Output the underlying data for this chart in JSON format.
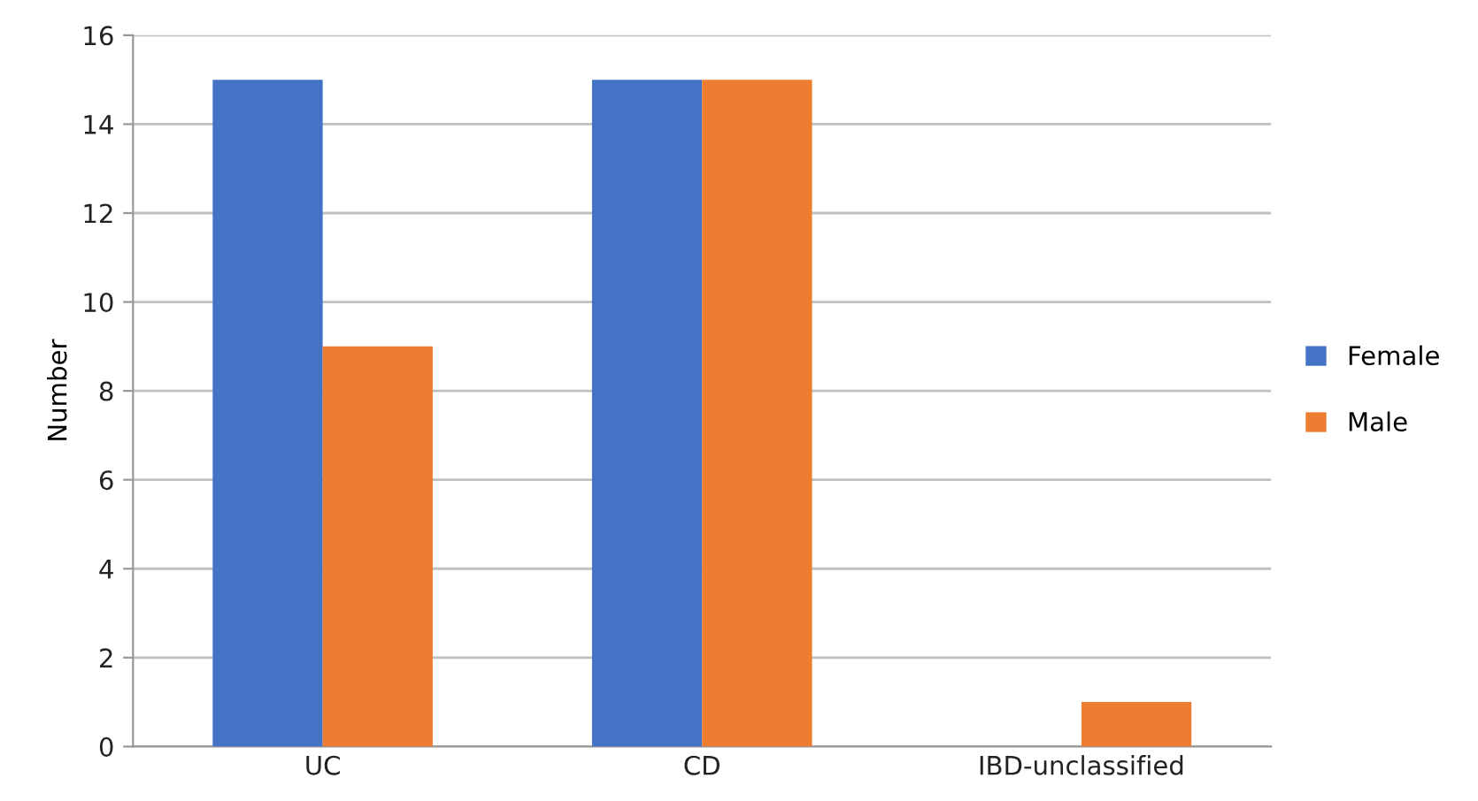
{
  "chart_data": {
    "type": "bar",
    "ylabel": "Number",
    "categories": [
      "UC",
      "CD",
      "IBD-unclassified"
    ],
    "series": [
      {
        "name": "Female",
        "color": "#4472c4",
        "values": [
          15,
          15,
          0
        ]
      },
      {
        "name": "Male",
        "color": "#ed7d31",
        "values": [
          9,
          15,
          1
        ]
      }
    ],
    "ylim": [
      0,
      16
    ],
    "yticks": [
      0,
      2,
      4,
      6,
      8,
      10,
      12,
      14,
      16
    ],
    "grid": "y",
    "legend": "right"
  }
}
